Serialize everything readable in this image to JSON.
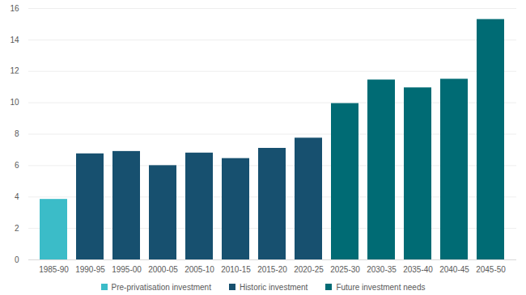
{
  "chart_data": {
    "type": "bar",
    "categories": [
      "1985-90",
      "1990-95",
      "1995-00",
      "2000-05",
      "2005-10",
      "2010-15",
      "2015-20",
      "2020-25",
      "2025-30",
      "2030-35",
      "2035-40",
      "2040-45",
      "2045-50"
    ],
    "series": [
      {
        "name": "Pre-privatisation investment",
        "color": "#3bbcc8",
        "values": [
          3.85,
          null,
          null,
          null,
          null,
          null,
          null,
          null,
          null,
          null,
          null,
          null,
          null
        ]
      },
      {
        "name": "Historic investment",
        "color": "#17506f",
        "values": [
          null,
          6.75,
          6.9,
          6.0,
          6.8,
          6.45,
          7.1,
          7.75,
          null,
          null,
          null,
          null,
          null
        ]
      },
      {
        "name": "Future investment needs",
        "color": "#006b74",
        "values": [
          null,
          null,
          null,
          null,
          null,
          null,
          null,
          null,
          9.95,
          11.45,
          10.95,
          11.5,
          15.3
        ]
      }
    ],
    "ylim": [
      0,
      16
    ],
    "yticks": [
      0,
      2,
      4,
      6,
      8,
      10,
      12,
      14,
      16
    ],
    "grid": true,
    "legend": "bottom"
  }
}
